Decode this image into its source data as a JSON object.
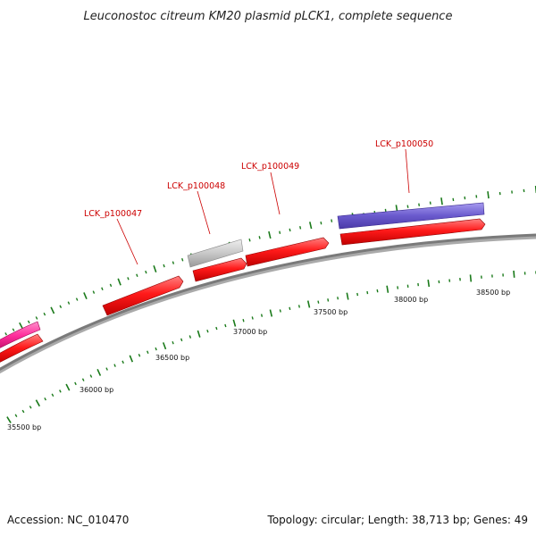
{
  "title": "Leuconostoc citreum KM20 plasmid pLCK1, complete sequence",
  "footer": {
    "accession": "Accession: NC_010470",
    "summary": "Topology: circular; Length: 38,713 bp; Genes: 49"
  },
  "ruler_labels": [
    "35500 bp",
    "36000 bp",
    "36500 bp",
    "37000 bp",
    "37500 bp",
    "38000 bp",
    "38500 bp"
  ],
  "gene_labels": [
    "LCK_p100047",
    "LCK_p100048",
    "LCK_p100049",
    "LCK_p100050"
  ],
  "colors": {
    "backbone": "#808080",
    "cds": "#ff1a1a",
    "gene_label": "#cc0000",
    "gray_feature": "#c8c8c8",
    "purple_feature": "#6a5acd",
    "pink_feature": "#ff2d9a",
    "tick": "#1a7a1a"
  }
}
